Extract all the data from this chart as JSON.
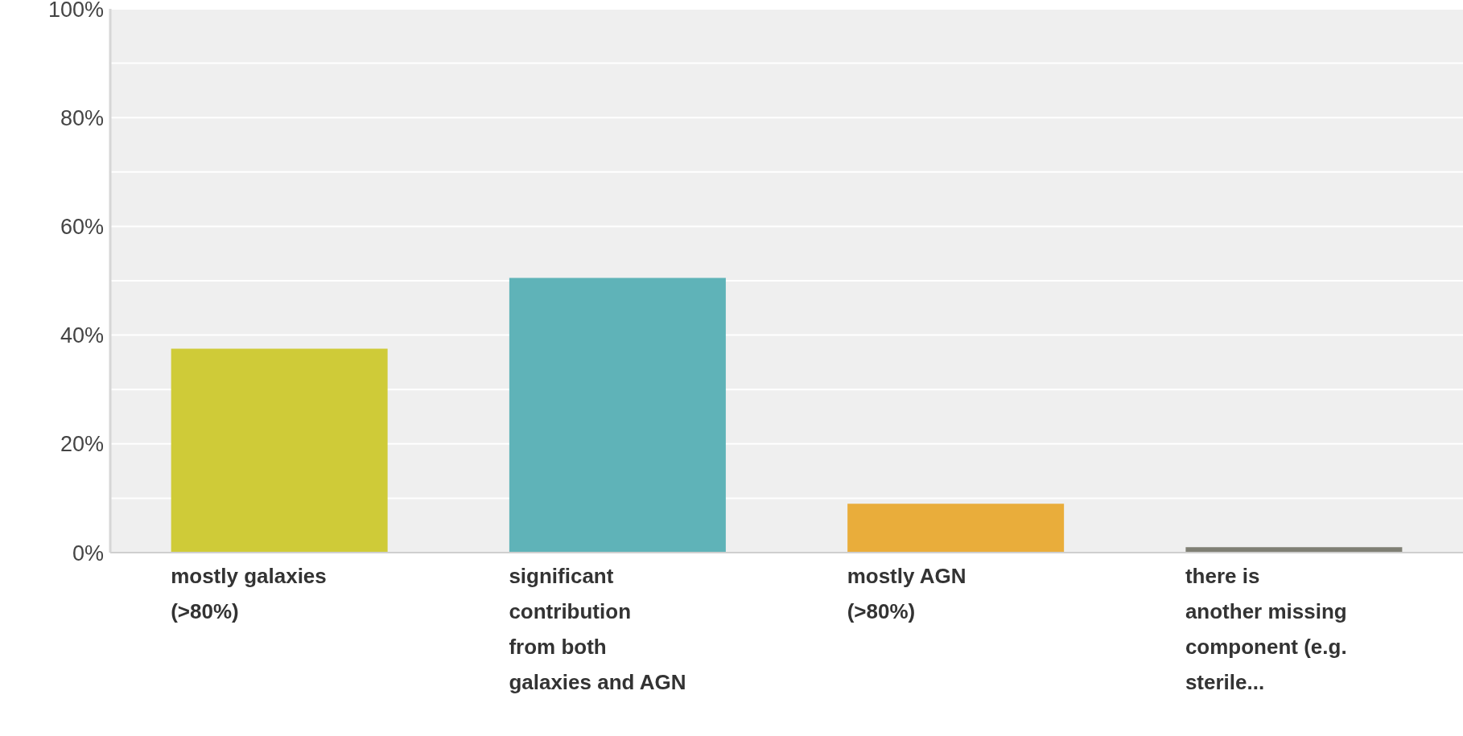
{
  "chart_data": {
    "type": "bar",
    "categories": [
      "mostly galaxies\n(>80%)",
      "significant\ncontribution\nfrom both\ngalaxies and AGN",
      "mostly AGN\n(>80%)",
      "there is\nanother missing\ncomponent (e.g.\nsterile..."
    ],
    "values": [
      37.5,
      50.5,
      9,
      1
    ],
    "colors": [
      "#cfcb38",
      "#5fb3b8",
      "#e9ad3b",
      "#7f7f74"
    ],
    "ylim": [
      0,
      100
    ],
    "yticks": [
      {
        "value": 0,
        "label": "0%"
      },
      {
        "value": 10,
        "label": null
      },
      {
        "value": 20,
        "label": "20%"
      },
      {
        "value": 30,
        "label": null
      },
      {
        "value": 40,
        "label": "40%"
      },
      {
        "value": 50,
        "label": null
      },
      {
        "value": 60,
        "label": "60%"
      },
      {
        "value": 70,
        "label": null
      },
      {
        "value": 80,
        "label": "80%"
      },
      {
        "value": 90,
        "label": null
      },
      {
        "value": 100,
        "label": "100%"
      }
    ],
    "grid": "y"
  }
}
